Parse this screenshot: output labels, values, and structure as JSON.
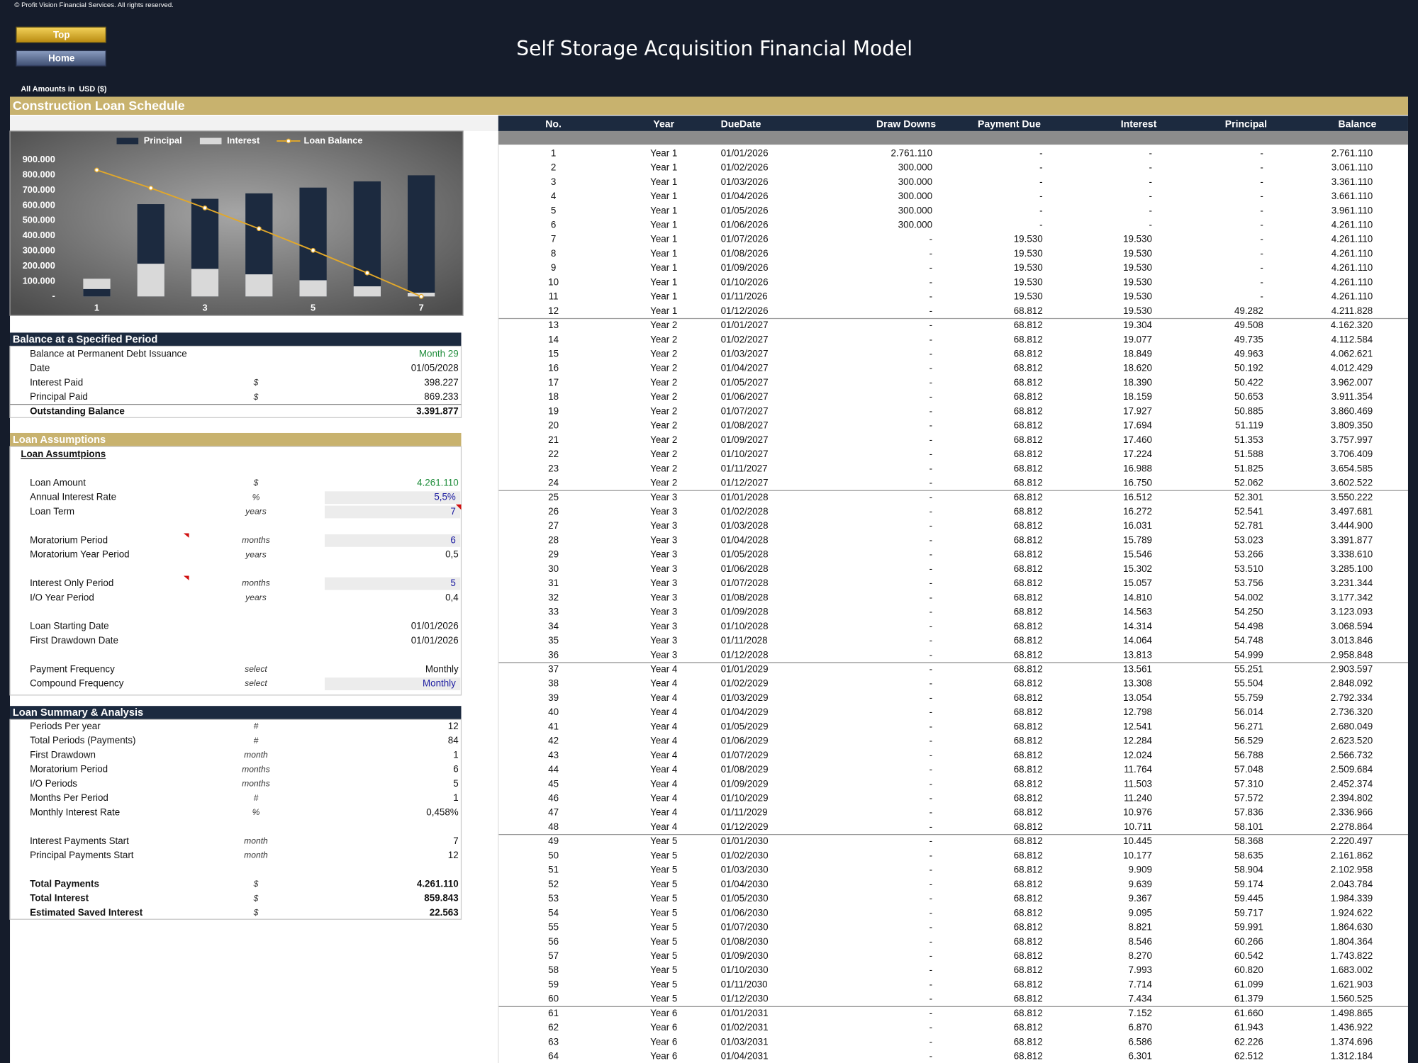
{
  "header": {
    "copyright": "© Profit Vision Financial Services. All rights reserved.",
    "title": "Self Storage Acquisition Financial Model",
    "buttons": [
      "Top",
      "Home"
    ],
    "currency_note": "All Amounts in  USD ($)",
    "section_title": "Construction Loan Schedule"
  },
  "chart_data": {
    "type": "bar",
    "categories": [
      "1",
      null,
      "3",
      null,
      "5",
      null,
      "7"
    ],
    "series": [
      {
        "name": "Principal",
        "color": "#1c2a3f",
        "values": [
          49000,
          609000,
          644000,
          680000,
          718000,
          759000,
          799000
        ]
      },
      {
        "name": "Interest",
        "color": "#d9d9d9",
        "values": [
          117000,
          216000,
          182000,
          146000,
          107000,
          67000,
          25000
        ]
      },
      {
        "name": "Loan Balance",
        "type": "line",
        "color": "#e2a82a",
        "values": [
          834000,
          715000,
          584000,
          447000,
          304000,
          155000,
          0
        ]
      }
    ],
    "ylim": [
      0,
      900000
    ],
    "yticks": [
      {
        "value": 0,
        "label": "-"
      },
      {
        "value": 100000,
        "label": "100.000"
      },
      {
        "value": 200000,
        "label": "200.000"
      },
      {
        "value": 300000,
        "label": "300.000"
      },
      {
        "value": 400000,
        "label": "400.000"
      },
      {
        "value": 500000,
        "label": "500.000"
      },
      {
        "value": 600000,
        "label": "600.000"
      },
      {
        "value": 700000,
        "label": "700.000"
      },
      {
        "value": 800000,
        "label": "800.000"
      },
      {
        "value": 900000,
        "label": "900.000"
      }
    ],
    "legend": "top"
  },
  "balance_section": {
    "title": "Balance at a Specified Period",
    "rows": [
      {
        "label": "Balance at Permanent Debt Issuance",
        "value": "Month 29",
        "style": "link"
      },
      {
        "label": "Date",
        "value": "01/05/2028"
      },
      {
        "label": "Interest Paid",
        "unit": "$",
        "value": "398.227"
      },
      {
        "label": "Principal Paid",
        "unit": "$",
        "value": "869.233"
      },
      {
        "label": "Outstanding Balance",
        "value": "3.391.877",
        "style": "bold"
      }
    ]
  },
  "loan_assumptions": {
    "title": "Loan Assumptions",
    "subtitle": "Loan Assumtpions",
    "groups": [
      [
        {
          "label": "Loan Amount",
          "unit": "$",
          "value": "4.261.110",
          "style": "link"
        },
        {
          "label": "Annual Interest Rate",
          "unit": "%",
          "value": "5,5%",
          "style": "input"
        },
        {
          "label": "Loan Term",
          "unit": "years",
          "value": "7",
          "style": "input"
        }
      ],
      [
        {
          "label": "Moratorium Period",
          "unit": "months",
          "value": "6",
          "style": "input"
        },
        {
          "label": "Moratorium Year Period",
          "unit": "years",
          "value": "0,5"
        }
      ],
      [
        {
          "label": "Interest Only Period",
          "unit": "months",
          "value": "5",
          "style": "input"
        },
        {
          "label": "I/O Year Period",
          "unit": "years",
          "value": "0,4"
        }
      ],
      [
        {
          "label": "Loan Starting Date",
          "value": "01/01/2026"
        },
        {
          "label": "First Drawdown Date",
          "value": "01/01/2026"
        }
      ],
      [
        {
          "label": "Payment Frequency",
          "unit": "select",
          "value": "Monthly"
        },
        {
          "label": "Compound Frequency",
          "unit": "select",
          "value": "Monthly",
          "style": "input"
        }
      ]
    ]
  },
  "loan_summary": {
    "title": "Loan Summary & Analysis",
    "groups": [
      [
        {
          "label": "Periods Per year",
          "unit": "#",
          "value": "12"
        },
        {
          "label": "Total Periods (Payments)",
          "unit": "#",
          "value": "84"
        },
        {
          "label": "First Drawdown",
          "unit": "month",
          "value": "1"
        },
        {
          "label": "Moratorium Period",
          "unit": "months",
          "value": "6"
        },
        {
          "label": "I/O Periods",
          "unit": "months",
          "value": "5"
        },
        {
          "label": "Months Per Period",
          "unit": "#",
          "value": "1"
        },
        {
          "label": "Monthly Interest Rate",
          "unit": "%",
          "value": "0,458%"
        }
      ],
      [
        {
          "label": "Interest Payments Start",
          "unit": "month",
          "value": "7"
        },
        {
          "label": "Principal Payments Start",
          "unit": "month",
          "value": "12"
        }
      ],
      [
        {
          "label": "Total Payments",
          "unit": "$",
          "value": "4.261.110",
          "style": "bold"
        },
        {
          "label": "Total Interest",
          "unit": "$",
          "value": "859.843",
          "style": "bold"
        },
        {
          "label": "Estimated Saved Interest",
          "unit": "$",
          "value": "22.563",
          "style": "bold"
        }
      ]
    ]
  },
  "table": {
    "columns": [
      "No.",
      "Year",
      "DueDate",
      "Draw Downs",
      "Payment Due",
      "Interest",
      "Principal",
      "Balance"
    ],
    "rows": [
      [
        "1",
        "Year 1",
        "01/01/2026",
        "2.761.110",
        "-",
        "-",
        "-",
        "2.761.110"
      ],
      [
        "2",
        "Year 1",
        "01/02/2026",
        "300.000",
        "-",
        "-",
        "-",
        "3.061.110"
      ],
      [
        "3",
        "Year 1",
        "01/03/2026",
        "300.000",
        "-",
        "-",
        "-",
        "3.361.110"
      ],
      [
        "4",
        "Year 1",
        "01/04/2026",
        "300.000",
        "-",
        "-",
        "-",
        "3.661.110"
      ],
      [
        "5",
        "Year 1",
        "01/05/2026",
        "300.000",
        "-",
        "-",
        "-",
        "3.961.110"
      ],
      [
        "6",
        "Year 1",
        "01/06/2026",
        "300.000",
        "-",
        "-",
        "-",
        "4.261.110"
      ],
      [
        "7",
        "Year 1",
        "01/07/2026",
        "-",
        "19.530",
        "19.530",
        "-",
        "4.261.110"
      ],
      [
        "8",
        "Year 1",
        "01/08/2026",
        "-",
        "19.530",
        "19.530",
        "-",
        "4.261.110"
      ],
      [
        "9",
        "Year 1",
        "01/09/2026",
        "-",
        "19.530",
        "19.530",
        "-",
        "4.261.110"
      ],
      [
        "10",
        "Year 1",
        "01/10/2026",
        "-",
        "19.530",
        "19.530",
        "-",
        "4.261.110"
      ],
      [
        "11",
        "Year 1",
        "01/11/2026",
        "-",
        "19.530",
        "19.530",
        "-",
        "4.261.110"
      ],
      [
        "12",
        "Year 1",
        "01/12/2026",
        "-",
        "68.812",
        "19.530",
        "49.282",
        "4.211.828"
      ],
      [
        "13",
        "Year 2",
        "01/01/2027",
        "-",
        "68.812",
        "19.304",
        "49.508",
        "4.162.320"
      ],
      [
        "14",
        "Year 2",
        "01/02/2027",
        "-",
        "68.812",
        "19.077",
        "49.735",
        "4.112.584"
      ],
      [
        "15",
        "Year 2",
        "01/03/2027",
        "-",
        "68.812",
        "18.849",
        "49.963",
        "4.062.621"
      ],
      [
        "16",
        "Year 2",
        "01/04/2027",
        "-",
        "68.812",
        "18.620",
        "50.192",
        "4.012.429"
      ],
      [
        "17",
        "Year 2",
        "01/05/2027",
        "-",
        "68.812",
        "18.390",
        "50.422",
        "3.962.007"
      ],
      [
        "18",
        "Year 2",
        "01/06/2027",
        "-",
        "68.812",
        "18.159",
        "50.653",
        "3.911.354"
      ],
      [
        "19",
        "Year 2",
        "01/07/2027",
        "-",
        "68.812",
        "17.927",
        "50.885",
        "3.860.469"
      ],
      [
        "20",
        "Year 2",
        "01/08/2027",
        "-",
        "68.812",
        "17.694",
        "51.119",
        "3.809.350"
      ],
      [
        "21",
        "Year 2",
        "01/09/2027",
        "-",
        "68.812",
        "17.460",
        "51.353",
        "3.757.997"
      ],
      [
        "22",
        "Year 2",
        "01/10/2027",
        "-",
        "68.812",
        "17.224",
        "51.588",
        "3.706.409"
      ],
      [
        "23",
        "Year 2",
        "01/11/2027",
        "-",
        "68.812",
        "16.988",
        "51.825",
        "3.654.585"
      ],
      [
        "24",
        "Year 2",
        "01/12/2027",
        "-",
        "68.812",
        "16.750",
        "52.062",
        "3.602.522"
      ],
      [
        "25",
        "Year 3",
        "01/01/2028",
        "-",
        "68.812",
        "16.512",
        "52.301",
        "3.550.222"
      ],
      [
        "26",
        "Year 3",
        "01/02/2028",
        "-",
        "68.812",
        "16.272",
        "52.541",
        "3.497.681"
      ],
      [
        "27",
        "Year 3",
        "01/03/2028",
        "-",
        "68.812",
        "16.031",
        "52.781",
        "3.444.900"
      ],
      [
        "28",
        "Year 3",
        "01/04/2028",
        "-",
        "68.812",
        "15.789",
        "53.023",
        "3.391.877"
      ],
      [
        "29",
        "Year 3",
        "01/05/2028",
        "-",
        "68.812",
        "15.546",
        "53.266",
        "3.338.610"
      ],
      [
        "30",
        "Year 3",
        "01/06/2028",
        "-",
        "68.812",
        "15.302",
        "53.510",
        "3.285.100"
      ],
      [
        "31",
        "Year 3",
        "01/07/2028",
        "-",
        "68.812",
        "15.057",
        "53.756",
        "3.231.344"
      ],
      [
        "32",
        "Year 3",
        "01/08/2028",
        "-",
        "68.812",
        "14.810",
        "54.002",
        "3.177.342"
      ],
      [
        "33",
        "Year 3",
        "01/09/2028",
        "-",
        "68.812",
        "14.563",
        "54.250",
        "3.123.093"
      ],
      [
        "34",
        "Year 3",
        "01/10/2028",
        "-",
        "68.812",
        "14.314",
        "54.498",
        "3.068.594"
      ],
      [
        "35",
        "Year 3",
        "01/11/2028",
        "-",
        "68.812",
        "14.064",
        "54.748",
        "3.013.846"
      ],
      [
        "36",
        "Year 3",
        "01/12/2028",
        "-",
        "68.812",
        "13.813",
        "54.999",
        "2.958.848"
      ],
      [
        "37",
        "Year 4",
        "01/01/2029",
        "-",
        "68.812",
        "13.561",
        "55.251",
        "2.903.597"
      ],
      [
        "38",
        "Year 4",
        "01/02/2029",
        "-",
        "68.812",
        "13.308",
        "55.504",
        "2.848.092"
      ],
      [
        "39",
        "Year 4",
        "01/03/2029",
        "-",
        "68.812",
        "13.054",
        "55.759",
        "2.792.334"
      ],
      [
        "40",
        "Year 4",
        "01/04/2029",
        "-",
        "68.812",
        "12.798",
        "56.014",
        "2.736.320"
      ],
      [
        "41",
        "Year 4",
        "01/05/2029",
        "-",
        "68.812",
        "12.541",
        "56.271",
        "2.680.049"
      ],
      [
        "42",
        "Year 4",
        "01/06/2029",
        "-",
        "68.812",
        "12.284",
        "56.529",
        "2.623.520"
      ],
      [
        "43",
        "Year 4",
        "01/07/2029",
        "-",
        "68.812",
        "12.024",
        "56.788",
        "2.566.732"
      ],
      [
        "44",
        "Year 4",
        "01/08/2029",
        "-",
        "68.812",
        "11.764",
        "57.048",
        "2.509.684"
      ],
      [
        "45",
        "Year 4",
        "01/09/2029",
        "-",
        "68.812",
        "11.503",
        "57.310",
        "2.452.374"
      ],
      [
        "46",
        "Year 4",
        "01/10/2029",
        "-",
        "68.812",
        "11.240",
        "57.572",
        "2.394.802"
      ],
      [
        "47",
        "Year 4",
        "01/11/2029",
        "-",
        "68.812",
        "10.976",
        "57.836",
        "2.336.966"
      ],
      [
        "48",
        "Year 4",
        "01/12/2029",
        "-",
        "68.812",
        "10.711",
        "58.101",
        "2.278.864"
      ],
      [
        "49",
        "Year 5",
        "01/01/2030",
        "-",
        "68.812",
        "10.445",
        "58.368",
        "2.220.497"
      ],
      [
        "50",
        "Year 5",
        "01/02/2030",
        "-",
        "68.812",
        "10.177",
        "58.635",
        "2.161.862"
      ],
      [
        "51",
        "Year 5",
        "01/03/2030",
        "-",
        "68.812",
        "9.909",
        "58.904",
        "2.102.958"
      ],
      [
        "52",
        "Year 5",
        "01/04/2030",
        "-",
        "68.812",
        "9.639",
        "59.174",
        "2.043.784"
      ],
      [
        "53",
        "Year 5",
        "01/05/2030",
        "-",
        "68.812",
        "9.367",
        "59.445",
        "1.984.339"
      ],
      [
        "54",
        "Year 5",
        "01/06/2030",
        "-",
        "68.812",
        "9.095",
        "59.717",
        "1.924.622"
      ],
      [
        "55",
        "Year 5",
        "01/07/2030",
        "-",
        "68.812",
        "8.821",
        "59.991",
        "1.864.630"
      ],
      [
        "56",
        "Year 5",
        "01/08/2030",
        "-",
        "68.812",
        "8.546",
        "60.266",
        "1.804.364"
      ],
      [
        "57",
        "Year 5",
        "01/09/2030",
        "-",
        "68.812",
        "8.270",
        "60.542",
        "1.743.822"
      ],
      [
        "58",
        "Year 5",
        "01/10/2030",
        "-",
        "68.812",
        "7.993",
        "60.820",
        "1.683.002"
      ],
      [
        "59",
        "Year 5",
        "01/11/2030",
        "-",
        "68.812",
        "7.714",
        "61.099",
        "1.621.903"
      ],
      [
        "60",
        "Year 5",
        "01/12/2030",
        "-",
        "68.812",
        "7.434",
        "61.379",
        "1.560.525"
      ],
      [
        "61",
        "Year 6",
        "01/01/2031",
        "-",
        "68.812",
        "7.152",
        "61.660",
        "1.498.865"
      ],
      [
        "62",
        "Year 6",
        "01/02/2031",
        "-",
        "68.812",
        "6.870",
        "61.943",
        "1.436.922"
      ],
      [
        "63",
        "Year 6",
        "01/03/2031",
        "-",
        "68.812",
        "6.586",
        "62.226",
        "1.374.696"
      ],
      [
        "64",
        "Year 6",
        "01/04/2031",
        "-",
        "68.812",
        "6.301",
        "62.512",
        "1.312.184"
      ]
    ]
  }
}
